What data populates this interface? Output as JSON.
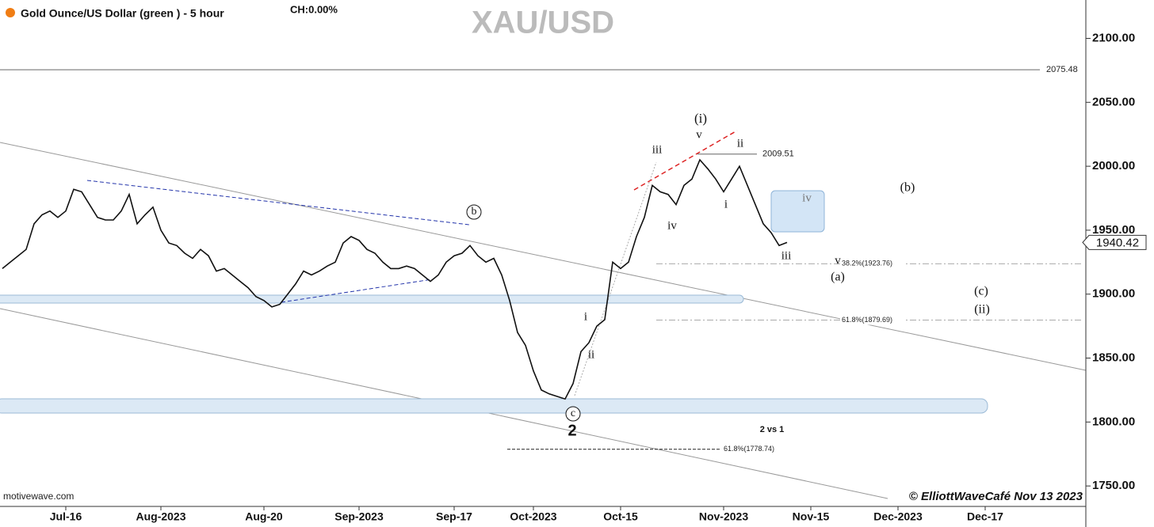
{
  "header": {
    "instrument": "Gold Ounce/US Dollar (green ) - 5 hour",
    "change": "CH:0.00%",
    "source": "motivewave.com",
    "credit": "© ElliottWaveCafé Nov 13 2023"
  },
  "chart_data": {
    "type": "line",
    "title": "XAU/USD",
    "categories": [
      null,
      null,
      null,
      null,
      null,
      null,
      null,
      null,
      "Jul-16",
      null,
      null,
      null,
      null,
      null,
      null,
      null,
      null,
      null,
      null,
      null,
      "Aug-2023",
      null,
      null,
      null,
      null,
      null,
      null,
      null,
      null,
      null,
      null,
      null,
      null,
      "Aug-20",
      null,
      null,
      null,
      null,
      null,
      null,
      null,
      null,
      null,
      null,
      null,
      "Sep-2023",
      null,
      null,
      null,
      null,
      null,
      null,
      null,
      null,
      null,
      null,
      null,
      "Sep-17",
      null,
      null,
      null,
      null,
      null,
      null,
      null,
      null,
      null,
      "Oct-2023",
      null,
      null,
      null,
      null,
      null,
      null,
      null,
      null,
      null,
      null,
      "Oct-15",
      null,
      null,
      null,
      null,
      null,
      null,
      null,
      null,
      null,
      null,
      null,
      null,
      "Nov-2023",
      null,
      null,
      null,
      null,
      null,
      null,
      null,
      null,
      null,
      null,
      "Nov-15",
      null,
      null,
      null,
      null,
      null,
      null,
      null,
      null,
      null,
      null,
      "Dec-2023",
      null,
      null,
      null,
      null,
      null,
      null,
      null,
      null,
      null,
      null,
      "Dec-17",
      null,
      null,
      null,
      null,
      null,
      null,
      null,
      null,
      null,
      null,
      null,
      null
    ],
    "series": [
      {
        "name": "Gold Ounce/US Dollar",
        "color": "#111111",
        "values": [
          1920,
          1925,
          1930,
          1935,
          1955,
          1962,
          1965,
          1960,
          1965,
          1982,
          1980,
          1970,
          1960,
          1958,
          1958,
          1965,
          1978,
          1955,
          1962,
          1968,
          1950,
          1940,
          1938,
          1932,
          1928,
          1935,
          1930,
          1918,
          1920,
          1915,
          1910,
          1905,
          1898,
          1895,
          1890,
          1892,
          1900,
          1908,
          1918,
          1915,
          1918,
          1922,
          1925,
          1940,
          1945,
          1942,
          1935,
          1932,
          1925,
          1920,
          1920,
          1922,
          1920,
          1915,
          1910,
          1915,
          1925,
          1930,
          1932,
          1938,
          1930,
          1925,
          1928,
          1915,
          1895,
          1870,
          1860,
          1840,
          1825,
          1822,
          1820,
          1818,
          1830,
          1855,
          1862,
          1875,
          1880,
          1925,
          1920,
          1925,
          1945,
          1960,
          1985,
          1980,
          1978,
          1970,
          1985,
          1990,
          2005,
          1998,
          1990,
          1980,
          1990,
          2000,
          1985,
          1970,
          1955,
          1948,
          1938,
          1940.42,
          null,
          null,
          null,
          null,
          null,
          null,
          null,
          null,
          null,
          null,
          null,
          null,
          null,
          null,
          null,
          null,
          null,
          null,
          null,
          null,
          null,
          null,
          null,
          null,
          null,
          null,
          null,
          null,
          null,
          null,
          null,
          null,
          null,
          null,
          null,
          null,
          null
        ]
      }
    ],
    "ylim": [
      1734,
      2130
    ],
    "yticks": [
      {
        "value": 2100,
        "label": "2100.00"
      },
      {
        "value": 2050,
        "label": "2050.00"
      },
      {
        "value": 2000,
        "label": "2000.00"
      },
      {
        "value": 1950,
        "label": "1950.00"
      },
      {
        "value": 1900,
        "label": "1900.00"
      },
      {
        "value": 1850,
        "label": "1850.00"
      },
      {
        "value": 1800,
        "label": "1800.00"
      },
      {
        "value": 1750,
        "label": "1750.00"
      }
    ],
    "levels": [
      2075.48,
      2009.51,
      {
        "value": 1923.76,
        "label": "38.2%(1923.76)"
      },
      {
        "value": 1879.69,
        "label": "61.8%(1879.69)"
      },
      {
        "value": 1778.74,
        "label": "61.8%(1778.74)"
      }
    ],
    "annotations": [
      "(i)",
      "v",
      "iii",
      "ii",
      "iv",
      "i",
      "iv",
      "iii",
      "v",
      "(a)",
      "(b)",
      "(c)",
      "(ii)",
      "i",
      "ii",
      "b",
      "c",
      "2",
      "2 vs 1"
    ]
  }
}
